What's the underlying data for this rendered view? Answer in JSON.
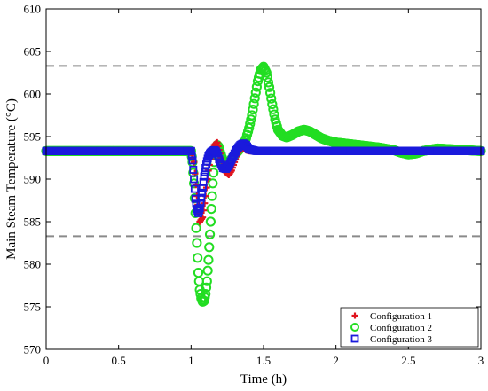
{
  "chart_data": {
    "type": "scatter",
    "xlabel": "Time (h)",
    "ylabel": "Main Steam Temperature (°C)",
    "xlim": [
      0,
      3
    ],
    "ylim": [
      570,
      610
    ],
    "xticks": [
      "0",
      "0.5",
      "1",
      "1.5",
      "2",
      "2.5",
      "3"
    ],
    "yticks": [
      "570",
      "575",
      "580",
      "585",
      "590",
      "595",
      "600",
      "605",
      "610"
    ],
    "grid": false,
    "legend_position": "bottom-right",
    "reference_lines": [
      {
        "y": 603.3
      },
      {
        "y": 583.3
      }
    ],
    "series": [
      {
        "name": "Configuration 1",
        "marker": "plus",
        "color": "#e0141e",
        "x": [
          0,
          0.1,
          0.2,
          0.3,
          0.4,
          0.5,
          0.6,
          0.7,
          0.8,
          0.9,
          1.0,
          1.02,
          1.04,
          1.06,
          1.08,
          1.1,
          1.12,
          1.14,
          1.16,
          1.18,
          1.2,
          1.22,
          1.24,
          1.26,
          1.28,
          1.3,
          1.32,
          1.34,
          1.36,
          1.38,
          1.4,
          1.45,
          1.5,
          1.6,
          1.8,
          2.0,
          2.2,
          2.4,
          2.6,
          2.8,
          3.0
        ],
        "y": [
          593.3,
          593.3,
          593.3,
          593.3,
          593.3,
          593.3,
          593.3,
          593.3,
          593.3,
          593.3,
          593.3,
          592.0,
          588.0,
          585.0,
          585.5,
          588.0,
          591.0,
          593.0,
          594.0,
          594.3,
          593.0,
          591.5,
          590.8,
          590.5,
          591.0,
          592.0,
          593.0,
          593.5,
          593.7,
          593.4,
          593.3,
          593.3,
          593.3,
          593.3,
          593.3,
          593.3,
          593.3,
          593.3,
          593.3,
          593.3,
          593.3
        ]
      },
      {
        "name": "Configuration 2",
        "marker": "circle",
        "color": "#22dd22",
        "x": [
          0,
          0.1,
          0.2,
          0.3,
          0.4,
          0.5,
          0.6,
          0.7,
          0.8,
          0.9,
          1.0,
          1.01,
          1.02,
          1.03,
          1.04,
          1.05,
          1.06,
          1.07,
          1.08,
          1.09,
          1.1,
          1.11,
          1.12,
          1.13,
          1.14,
          1.15,
          1.16,
          1.17,
          1.18,
          1.19,
          1.2,
          1.22,
          1.24,
          1.26,
          1.28,
          1.3,
          1.32,
          1.34,
          1.36,
          1.38,
          1.4,
          1.42,
          1.44,
          1.46,
          1.48,
          1.5,
          1.52,
          1.54,
          1.56,
          1.58,
          1.6,
          1.63,
          1.66,
          1.7,
          1.74,
          1.78,
          1.82,
          1.86,
          1.9,
          1.95,
          2.0,
          2.1,
          2.2,
          2.3,
          2.4,
          2.45,
          2.5,
          2.55,
          2.6,
          2.7,
          2.8,
          2.9,
          3.0
        ],
        "y": [
          593.3,
          593.3,
          593.3,
          593.3,
          593.3,
          593.3,
          593.3,
          593.3,
          593.3,
          593.3,
          593.3,
          592.0,
          589.5,
          586.0,
          582.5,
          579.0,
          577.0,
          576.0,
          575.6,
          575.7,
          576.5,
          578.0,
          580.5,
          583.5,
          586.5,
          589.5,
          592.0,
          593.5,
          594.0,
          593.8,
          593.2,
          592.2,
          591.8,
          591.9,
          592.4,
          592.8,
          593.2,
          593.6,
          594.0,
          594.8,
          596.0,
          597.5,
          599.5,
          601.5,
          602.8,
          603.2,
          602.5,
          600.8,
          598.8,
          597.0,
          595.8,
          595.1,
          594.9,
          595.2,
          595.6,
          595.8,
          595.6,
          595.2,
          594.8,
          594.5,
          594.3,
          594.1,
          593.9,
          593.7,
          593.4,
          593.1,
          592.9,
          593.0,
          593.3,
          593.6,
          593.5,
          593.4,
          593.3
        ]
      },
      {
        "name": "Configuration 3",
        "marker": "square",
        "color": "#1a1adc",
        "x": [
          0,
          0.1,
          0.2,
          0.3,
          0.4,
          0.5,
          0.6,
          0.7,
          0.8,
          0.9,
          1.0,
          1.01,
          1.02,
          1.03,
          1.04,
          1.05,
          1.06,
          1.07,
          1.08,
          1.09,
          1.1,
          1.11,
          1.12,
          1.13,
          1.14,
          1.15,
          1.16,
          1.17,
          1.18,
          1.2,
          1.22,
          1.24,
          1.26,
          1.28,
          1.3,
          1.32,
          1.34,
          1.36,
          1.38,
          1.4,
          1.45,
          1.5,
          1.6,
          1.8,
          2.0,
          2.2,
          2.4,
          2.6,
          2.8,
          3.0
        ],
        "y": [
          593.3,
          593.3,
          593.3,
          593.3,
          593.3,
          593.3,
          593.3,
          593.3,
          593.3,
          593.3,
          593.3,
          592.2,
          590.0,
          587.7,
          586.5,
          586.0,
          586.6,
          587.8,
          589.0,
          590.3,
          591.3,
          592.1,
          592.7,
          593.0,
          593.2,
          593.3,
          593.4,
          593.3,
          593.0,
          592.0,
          591.3,
          591.2,
          591.6,
          592.3,
          593.0,
          593.6,
          594.0,
          594.2,
          594.0,
          593.5,
          593.3,
          593.3,
          593.3,
          593.3,
          593.3,
          593.3,
          593.3,
          593.3,
          593.3,
          593.3
        ]
      }
    ]
  }
}
